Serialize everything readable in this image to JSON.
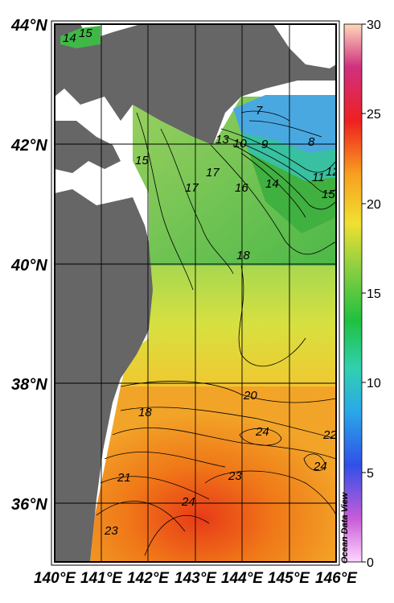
{
  "map": {
    "lat_labels": [
      "44°N",
      "42°N",
      "40°N",
      "38°N",
      "36°N"
    ],
    "lon_labels": [
      "140°E",
      "141°E",
      "142°E",
      "143°E",
      "144°E",
      "145°E",
      "146°E"
    ],
    "lon_range": [
      140,
      146
    ],
    "lat_range": [
      35,
      44
    ],
    "contour_labels": [
      "14",
      "15",
      "7",
      "13",
      "10",
      "9",
      "8",
      "15",
      "17",
      "17",
      "16",
      "14",
      "11",
      "12",
      "15",
      "18",
      "20",
      "18",
      "24",
      "22",
      "24",
      "21",
      "23",
      "24",
      "23"
    ],
    "colors": {
      "land": "#666666",
      "grid": "#000000"
    }
  },
  "colorbar": {
    "ticks": [
      "30",
      "25",
      "20",
      "15",
      "10",
      "5",
      "0"
    ],
    "range": [
      0,
      30
    ],
    "credit": "Ocean Data View"
  }
}
